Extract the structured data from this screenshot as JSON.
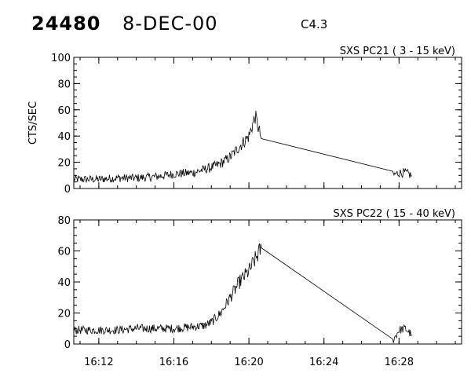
{
  "header": {
    "id": "24480",
    "date": "8-DEC-00",
    "flare_class": "C4.3"
  },
  "chart_data": [
    {
      "type": "line",
      "title": "SXS PC21  (  3 - 15 keV)",
      "ylabel": "CTS/SEC",
      "xlabel": "",
      "ylim": [
        0,
        100
      ],
      "yticks": [
        0,
        20,
        40,
        60,
        80,
        100
      ],
      "xlim": [
        "16:10:40",
        "16:31:20"
      ],
      "xticks": [
        "16:12",
        "16:16",
        "16:20",
        "16:24",
        "16:28"
      ],
      "grid": false,
      "series": [
        {
          "x": [
            "16:10:40",
            "16:12:00",
            "16:13:00",
            "16:14:00",
            "16:15:00",
            "16:16:00",
            "16:17:00",
            "16:17:30",
            "16:18:00",
            "16:18:30",
            "16:19:00",
            "16:19:30",
            "16:20:00",
            "16:20:20",
            "16:20:40",
            "16:27:40",
            "16:28:00",
            "16:28:20",
            "16:28:40"
          ],
          "y": [
            7,
            7,
            8,
            8,
            9,
            11,
            12,
            14,
            16,
            19,
            24,
            32,
            40,
            55,
            38,
            10,
            12,
            12,
            10
          ]
        }
      ]
    },
    {
      "type": "line",
      "title": "SXS PC22  ( 15 - 40 keV)",
      "ylabel": "",
      "xlabel": "",
      "ylim": [
        0,
        80
      ],
      "yticks": [
        0,
        20,
        40,
        60,
        80
      ],
      "xlim": [
        "16:10:40",
        "16:31:20"
      ],
      "xticks": [
        "16:12",
        "16:16",
        "16:20",
        "16:24",
        "16:28"
      ],
      "grid": false,
      "series": [
        {
          "x": [
            "16:10:40",
            "16:12:00",
            "16:13:00",
            "16:14:00",
            "16:15:00",
            "16:16:00",
            "16:17:00",
            "16:17:40",
            "16:18:00",
            "16:18:30",
            "16:19:00",
            "16:19:30",
            "16:20:00",
            "16:20:40",
            "16:27:40",
            "16:28:00",
            "16:28:20",
            "16:28:40"
          ],
          "y": [
            9,
            9,
            9,
            10,
            10,
            10,
            11,
            12,
            14,
            20,
            30,
            40,
            47,
            62,
            2,
            9,
            10,
            6
          ]
        }
      ]
    }
  ]
}
